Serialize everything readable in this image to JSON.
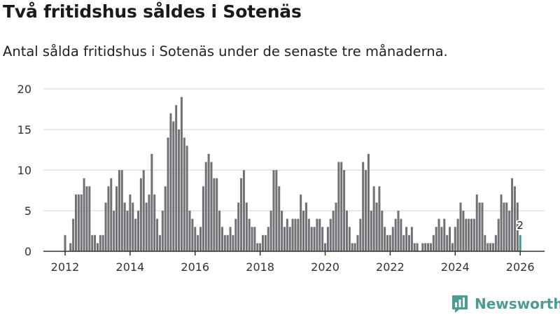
{
  "title": "Två fritidshus såldes i Sotenäs",
  "subtitle": "Antal sålda fritidshus i Sotenäs under de senaste tre månaderna.",
  "brand": {
    "name": "Newsworthy",
    "icon": "newsworthy-logo-icon",
    "color": "#4a9c92"
  },
  "colors": {
    "bar": "#717075",
    "highlight": "#3a9b92",
    "grid": "#d9d9d9",
    "axis": "#333333"
  },
  "chart_data": {
    "type": "bar",
    "title": "Två fritidshus såldes i Sotenäs",
    "xlabel": "",
    "ylabel": "",
    "ylim": [
      0,
      20
    ],
    "yticks": [
      "0",
      "5",
      "10",
      "15",
      "20"
    ],
    "xticks": [
      "2012",
      "2014",
      "2016",
      "2018",
      "2020",
      "2022",
      "2024",
      "2026"
    ],
    "grid": true,
    "legend": "none",
    "start": "2012-01",
    "frequency": "monthly",
    "highlight_label": "2",
    "values": [
      2,
      0,
      1,
      4,
      7,
      7,
      7,
      9,
      8,
      8,
      2,
      2,
      1,
      2,
      2,
      6,
      8,
      9,
      5,
      8,
      10,
      10,
      6,
      5,
      7,
      6,
      4,
      5,
      9,
      10,
      6,
      7,
      12,
      7,
      4,
      2,
      5,
      8,
      14,
      17,
      16,
      18,
      15,
      19,
      14,
      13,
      5,
      4,
      3,
      2,
      3,
      8,
      11,
      12,
      11,
      9,
      9,
      5,
      3,
      2,
      2,
      3,
      2,
      4,
      6,
      9,
      10,
      6,
      4,
      3,
      3,
      1,
      1,
      2,
      2,
      3,
      5,
      10,
      10,
      8,
      5,
      3,
      4,
      3,
      4,
      4,
      4,
      7,
      5,
      6,
      4,
      3,
      3,
      4,
      4,
      3,
      1,
      3,
      4,
      5,
      6,
      11,
      11,
      10,
      5,
      3,
      1,
      1,
      2,
      4,
      11,
      10,
      12,
      5,
      8,
      6,
      8,
      5,
      3,
      2,
      2,
      3,
      4,
      5,
      4,
      2,
      3,
      2,
      3,
      1,
      1,
      0,
      1,
      1,
      1,
      1,
      2,
      3,
      4,
      3,
      4,
      2,
      3,
      1,
      3,
      4,
      6,
      5,
      4,
      4,
      4,
      4,
      7,
      6,
      6,
      2,
      1,
      1,
      1,
      2,
      4,
      7,
      6,
      6,
      5,
      9,
      8,
      6,
      2
    ]
  }
}
